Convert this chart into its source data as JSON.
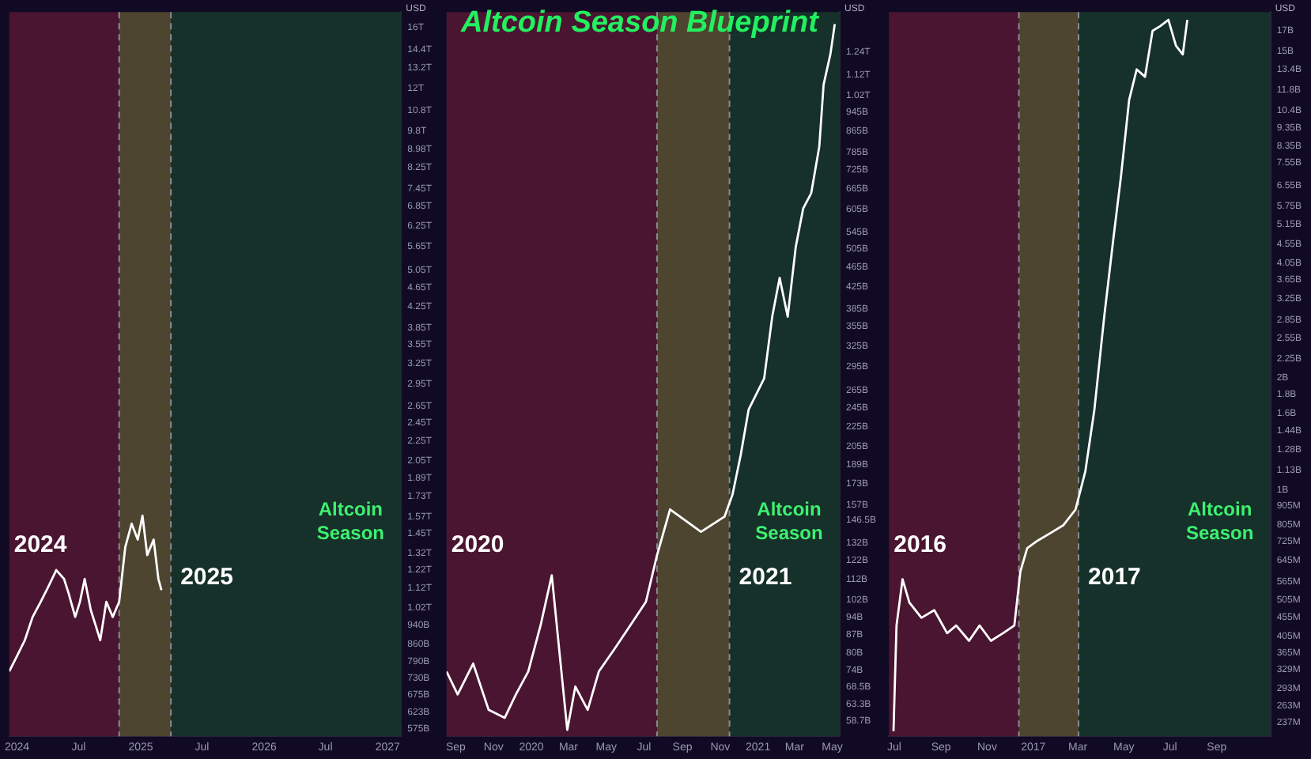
{
  "chart_data": [
    {
      "type": "line",
      "ylabel": "USD",
      "log": true,
      "legend": false,
      "grid": false,
      "xlim": [
        "2023-12-09",
        "2027-02-10"
      ],
      "xticks": [
        {
          "value": "2024-01-01",
          "label": "2024"
        },
        {
          "value": "2024-07-01",
          "label": "Jul"
        },
        {
          "value": "2025-01-01",
          "label": "2025"
        },
        {
          "value": "2025-07-01",
          "label": "Jul"
        },
        {
          "value": "2026-01-01",
          "label": "2026"
        },
        {
          "value": "2026-07-01",
          "label": "Jul"
        },
        {
          "value": "2027-01-01",
          "label": "2027"
        }
      ],
      "ylim": [
        555000000000.0,
        17200000000000.0
      ],
      "yticks": [
        {
          "value": 16000000000000.0,
          "label": "16T"
        },
        {
          "value": 14400000000000.0,
          "label": "14.4T"
        },
        {
          "value": 13200000000000.0,
          "label": "13.2T"
        },
        {
          "value": 12000000000000.0,
          "label": "12T"
        },
        {
          "value": 10800000000000.0,
          "label": "10.8T"
        },
        {
          "value": 9800000000000.0,
          "label": "9.8T"
        },
        {
          "value": 8980000000000.0,
          "label": "8.98T"
        },
        {
          "value": 8250000000000.0,
          "label": "8.25T"
        },
        {
          "value": 7450000000000.0,
          "label": "7.45T"
        },
        {
          "value": 6850000000000.0,
          "label": "6.85T"
        },
        {
          "value": 6250000000000.0,
          "label": "6.25T"
        },
        {
          "value": 5650000000000.0,
          "label": "5.65T"
        },
        {
          "value": 5050000000000.0,
          "label": "5.05T"
        },
        {
          "value": 4650000000000.0,
          "label": "4.65T"
        },
        {
          "value": 4250000000000.0,
          "label": "4.25T"
        },
        {
          "value": 3850000000000.0,
          "label": "3.85T"
        },
        {
          "value": 3550000000000.0,
          "label": "3.55T"
        },
        {
          "value": 3250000000000.0,
          "label": "3.25T"
        },
        {
          "value": 2950000000000.0,
          "label": "2.95T"
        },
        {
          "value": 2650000000000.0,
          "label": "2.65T"
        },
        {
          "value": 2450000000000.0,
          "label": "2.45T"
        },
        {
          "value": 2250000000000.0,
          "label": "2.25T"
        },
        {
          "value": 2050000000000.0,
          "label": "2.05T"
        },
        {
          "value": 1890000000000.0,
          "label": "1.89T"
        },
        {
          "value": 1730000000000.0,
          "label": "1.73T"
        },
        {
          "value": 1570000000000.0,
          "label": "1.57T"
        },
        {
          "value": 1450000000000.0,
          "label": "1.45T"
        },
        {
          "value": 1320000000000.0,
          "label": "1.32T"
        },
        {
          "value": 1220000000000.0,
          "label": "1.22T"
        },
        {
          "value": 1120000000000.0,
          "label": "1.12T"
        },
        {
          "value": 1020000000000.0,
          "label": "1.02T"
        },
        {
          "value": 940000000000.0,
          "label": "940B"
        },
        {
          "value": 860000000000.0,
          "label": "860B"
        },
        {
          "value": 790000000000.0,
          "label": "790B"
        },
        {
          "value": 730000000000.0,
          "label": "730B"
        },
        {
          "value": 675000000000.0,
          "label": "675B"
        },
        {
          "value": 623000000000.0,
          "label": "623B"
        },
        {
          "value": 575000000000.0,
          "label": "575B"
        }
      ],
      "bands": [
        {
          "axis": "x",
          "from": "2023-12-09",
          "to": "2024-10-29",
          "label": "2024",
          "color": "#4a1530"
        },
        {
          "axis": "x",
          "from": "2024-10-29",
          "to": "2025-03-31",
          "label": "2025",
          "color": "#4e4530"
        },
        {
          "axis": "x",
          "from": "2025-03-31",
          "to": "2027-02-10",
          "label": "Altcoin Season",
          "color": "#16302a"
        }
      ],
      "ref_lines": [
        {
          "axis": "x",
          "value": "2024-10-29",
          "color": "#8a8898",
          "line_style": "dashed"
        },
        {
          "axis": "x",
          "value": "2025-03-31",
          "color": "#8a8898",
          "line_style": "dashed"
        }
      ],
      "series": [
        {
          "color": "#ffffff",
          "x": [
            "2023-12-09",
            "2024-01-01",
            "2024-01-24",
            "2024-02-16",
            "2024-03-11",
            "2024-04-03",
            "2024-04-26",
            "2024-05-19",
            "2024-06-02",
            "2024-06-21",
            "2024-07-05",
            "2024-07-19",
            "2024-08-06",
            "2024-08-20",
            "2024-09-03",
            "2024-09-21",
            "2024-10-10",
            "2024-10-29",
            "2024-11-16",
            "2024-12-05",
            "2024-12-23",
            "2025-01-06",
            "2025-01-20",
            "2025-02-08",
            "2025-02-22",
            "2025-03-03"
          ],
          "values": [
            755000000000.0,
            812000000000.0,
            875000000000.0,
            977000000000.0,
            1050000000000.0,
            1130000000000.0,
            1220000000000.0,
            1170000000000.0,
            1090000000000.0,
            977000000000.0,
            1050000000000.0,
            1170000000000.0,
            1010000000000.0,
            941000000000.0,
            875000000000.0,
            1050000000000.0,
            977000000000.0,
            1050000000000.0,
            1360000000000.0,
            1520000000000.0,
            1410000000000.0,
            1580000000000.0,
            1310000000000.0,
            1410000000000.0,
            1170000000000.0,
            1110000000000.0
          ]
        }
      ]
    },
    {
      "type": "line",
      "title": "Altcoin Season Blueprint",
      "ylabel": "USD",
      "log": true,
      "legend": false,
      "grid": false,
      "xlim": [
        "2019-08-17",
        "2021-05-13"
      ],
      "xticks": [
        {
          "value": "2019-09-01",
          "label": "Sep"
        },
        {
          "value": "2019-11-01",
          "label": "Nov"
        },
        {
          "value": "2020-01-01",
          "label": "2020"
        },
        {
          "value": "2020-03-01",
          "label": "Mar"
        },
        {
          "value": "2020-05-01",
          "label": "May"
        },
        {
          "value": "2020-07-01",
          "label": "Jul"
        },
        {
          "value": "2020-09-01",
          "label": "Sep"
        },
        {
          "value": "2020-11-01",
          "label": "Nov"
        },
        {
          "value": "2021-01-01",
          "label": "2021"
        },
        {
          "value": "2021-03-01",
          "label": "Mar"
        },
        {
          "value": "2021-05-01",
          "label": "May"
        }
      ],
      "ylim": [
        54700000000.0,
        1490000000000.0
      ],
      "yticks": [
        {
          "value": 1240000000000.0,
          "label": "1.24T"
        },
        {
          "value": 1120000000000.0,
          "label": "1.12T"
        },
        {
          "value": 1020000000000.0,
          "label": "1.02T"
        },
        {
          "value": 945000000000.0,
          "label": "945B"
        },
        {
          "value": 865000000000.0,
          "label": "865B"
        },
        {
          "value": 785000000000.0,
          "label": "785B"
        },
        {
          "value": 725000000000.0,
          "label": "725B"
        },
        {
          "value": 665000000000.0,
          "label": "665B"
        },
        {
          "value": 605000000000.0,
          "label": "605B"
        },
        {
          "value": 545000000000.0,
          "label": "545B"
        },
        {
          "value": 505000000000.0,
          "label": "505B"
        },
        {
          "value": 465000000000.0,
          "label": "465B"
        },
        {
          "value": 425000000000.0,
          "label": "425B"
        },
        {
          "value": 385000000000.0,
          "label": "385B"
        },
        {
          "value": 355000000000.0,
          "label": "355B"
        },
        {
          "value": 325000000000.0,
          "label": "325B"
        },
        {
          "value": 295000000000.0,
          "label": "295B"
        },
        {
          "value": 265000000000.0,
          "label": "265B"
        },
        {
          "value": 245000000000.0,
          "label": "245B"
        },
        {
          "value": 225000000000.0,
          "label": "225B"
        },
        {
          "value": 205000000000.0,
          "label": "205B"
        },
        {
          "value": 189000000000.0,
          "label": "189B"
        },
        {
          "value": 173000000000.0,
          "label": "173B"
        },
        {
          "value": 157000000000.0,
          "label": "157B"
        },
        {
          "value": 146500000000.0,
          "label": "146.5B"
        },
        {
          "value": 132000000000.0,
          "label": "132B"
        },
        {
          "value": 122000000000.0,
          "label": "122B"
        },
        {
          "value": 112000000000.0,
          "label": "112B"
        },
        {
          "value": 102000000000.0,
          "label": "102B"
        },
        {
          "value": 94000000000.0,
          "label": "94B"
        },
        {
          "value": 87000000000.0,
          "label": "87B"
        },
        {
          "value": 80000000000.0,
          "label": "80B"
        },
        {
          "value": 74000000000.0,
          "label": "74B"
        },
        {
          "value": 68500000000.0,
          "label": "68.5B"
        },
        {
          "value": 63300000000.0,
          "label": "63.3B"
        },
        {
          "value": 58700000000.0,
          "label": "58.7B"
        }
      ],
      "bands": [
        {
          "axis": "x",
          "from": "2019-08-17",
          "to": "2020-07-22",
          "label": "2020",
          "color": "#4a1530"
        },
        {
          "axis": "x",
          "from": "2020-07-22",
          "to": "2020-11-16",
          "label": "2021",
          "color": "#4e4530"
        },
        {
          "axis": "x",
          "from": "2020-11-16",
          "to": "2021-05-13",
          "label": "Altcoin Season",
          "color": "#16302a"
        }
      ],
      "ref_lines": [
        {
          "axis": "x",
          "value": "2020-07-22",
          "color": "#8a8898",
          "line_style": "dashed"
        },
        {
          "axis": "x",
          "value": "2020-11-16",
          "color": "#8a8898",
          "line_style": "dashed"
        }
      ],
      "series": [
        {
          "color": "#ffffff",
          "x": [
            "2019-08-17",
            "2019-09-04",
            "2019-09-29",
            "2019-10-24",
            "2019-11-19",
            "2019-12-07",
            "2019-12-27",
            "2020-01-16",
            "2020-02-03",
            "2020-02-16",
            "2020-02-28",
            "2020-03-12",
            "2020-04-01",
            "2020-04-19",
            "2020-05-15",
            "2020-06-09",
            "2020-07-04",
            "2020-07-22",
            "2020-08-12",
            "2020-10-01",
            "2020-11-08",
            "2020-11-21",
            "2020-12-04",
            "2020-12-17",
            "2021-01-11",
            "2021-01-24",
            "2021-02-05",
            "2021-02-18",
            "2021-03-03",
            "2021-03-15",
            "2021-03-28",
            "2021-04-10",
            "2021-04-17",
            "2021-04-28",
            "2021-05-05"
          ],
          "values": [
            73500000000.0,
            66200000000.0,
            76200000000.0,
            61700000000.0,
            59500000000.0,
            66200000000.0,
            73500000000.0,
            90800000000.0,
            114000000000.0,
            78900000000.0,
            56300000000.0,
            68600000000.0,
            61700000000.0,
            73500000000.0,
            81700000000.0,
            90800000000.0,
            101000000000.0,
            125000000000.0,
            154000000000.0,
            139000000000.0,
            149000000000.0,
            165000000000.0,
            197000000000.0,
            243000000000.0,
            280000000000.0,
            371000000000.0,
            443000000000.0,
            371000000000.0,
            510000000000.0,
            608000000000.0,
            652000000000.0,
            806000000000.0,
            1070000000000.0,
            1230000000000.0,
            1410000000000.0
          ]
        }
      ]
    },
    {
      "type": "line",
      "ylabel": "USD",
      "log": true,
      "legend": false,
      "grid": false,
      "xlim": [
        "2016-06-24",
        "2017-11-11"
      ],
      "xticks": [
        {
          "value": "2016-07-01",
          "label": "Jul"
        },
        {
          "value": "2016-09-01",
          "label": "Sep"
        },
        {
          "value": "2016-11-01",
          "label": "Nov"
        },
        {
          "value": "2017-01-01",
          "label": "2017"
        },
        {
          "value": "2017-03-01",
          "label": "Mar"
        },
        {
          "value": "2017-05-01",
          "label": "May"
        },
        {
          "value": "2017-07-01",
          "label": "Jul"
        },
        {
          "value": "2017-09-01",
          "label": "Sep"
        }
      ],
      "ylim": [
        218000000.0,
        19100000000.0
      ],
      "yticks": [
        {
          "value": 17000000000.0,
          "label": "17B"
        },
        {
          "value": 15000000000.0,
          "label": "15B"
        },
        {
          "value": 13400000000.0,
          "label": "13.4B"
        },
        {
          "value": 11800000000.0,
          "label": "11.8B"
        },
        {
          "value": 10400000000.0,
          "label": "10.4B"
        },
        {
          "value": 9350000000.0,
          "label": "9.35B"
        },
        {
          "value": 8350000000.0,
          "label": "8.35B"
        },
        {
          "value": 7550000000.0,
          "label": "7.55B"
        },
        {
          "value": 6550000000.0,
          "label": "6.55B"
        },
        {
          "value": 5750000000.0,
          "label": "5.75B"
        },
        {
          "value": 5150000000.0,
          "label": "5.15B"
        },
        {
          "value": 4550000000.0,
          "label": "4.55B"
        },
        {
          "value": 4050000000.0,
          "label": "4.05B"
        },
        {
          "value": 3650000000.0,
          "label": "3.65B"
        },
        {
          "value": 3250000000.0,
          "label": "3.25B"
        },
        {
          "value": 2850000000.0,
          "label": "2.85B"
        },
        {
          "value": 2550000000.0,
          "label": "2.55B"
        },
        {
          "value": 2250000000.0,
          "label": "2.25B"
        },
        {
          "value": 2000000000.0,
          "label": "2B"
        },
        {
          "value": 1800000000.0,
          "label": "1.8B"
        },
        {
          "value": 1600000000.0,
          "label": "1.6B"
        },
        {
          "value": 1440000000.0,
          "label": "1.44B"
        },
        {
          "value": 1280000000.0,
          "label": "1.28B"
        },
        {
          "value": 1130000000.0,
          "label": "1.13B"
        },
        {
          "value": 1000000000.0,
          "label": "1B"
        },
        {
          "value": 905000000.0,
          "label": "905M"
        },
        {
          "value": 805000000.0,
          "label": "805M"
        },
        {
          "value": 725000000.0,
          "label": "725M"
        },
        {
          "value": 645000000.0,
          "label": "645M"
        },
        {
          "value": 565000000.0,
          "label": "565M"
        },
        {
          "value": 505000000.0,
          "label": "505M"
        },
        {
          "value": 455000000.0,
          "label": "455M"
        },
        {
          "value": 405000000.0,
          "label": "405M"
        },
        {
          "value": 365000000.0,
          "label": "365M"
        },
        {
          "value": 329000000.0,
          "label": "329M"
        },
        {
          "value": 293000000.0,
          "label": "293M"
        },
        {
          "value": 263000000.0,
          "label": "263M"
        },
        {
          "value": 237000000.0,
          "label": "237M"
        }
      ],
      "bands": [
        {
          "axis": "x",
          "from": "2016-06-24",
          "to": "2016-12-13",
          "label": "2016",
          "color": "#4a1530"
        },
        {
          "axis": "x",
          "from": "2016-12-13",
          "to": "2017-03-02",
          "label": "2017",
          "color": "#4e4530"
        },
        {
          "axis": "x",
          "from": "2017-03-02",
          "to": "2017-11-11",
          "label": "Altcoin Season",
          "color": "#16302a"
        }
      ],
      "ref_lines": [
        {
          "axis": "x",
          "value": "2016-12-13",
          "color": "#8a8898",
          "line_style": "dashed"
        },
        {
          "axis": "x",
          "value": "2017-03-02",
          "color": "#8a8898",
          "line_style": "dashed"
        }
      ],
      "series": [
        {
          "color": "#ffffff",
          "x": [
            "2016-06-30",
            "2016-07-04",
            "2016-07-12",
            "2016-07-21",
            "2016-08-06",
            "2016-08-23",
            "2016-09-09",
            "2016-09-21",
            "2016-10-08",
            "2016-10-22",
            "2016-11-06",
            "2016-11-22",
            "2016-12-07",
            "2016-12-15",
            "2016-12-24",
            "2017-01-07",
            "2017-01-24",
            "2017-02-10",
            "2017-02-26",
            "2017-03-11",
            "2017-03-23",
            "2017-04-05",
            "2017-04-17",
            "2017-04-27",
            "2017-05-08",
            "2017-05-18",
            "2017-05-29",
            "2017-06-08",
            "2017-06-18",
            "2017-06-29",
            "2017-07-09",
            "2017-07-18",
            "2017-07-24"
          ],
          "values": [
            225000000.0,
            432000000.0,
            575000000.0,
            498000000.0,
            453000000.0,
            475000000.0,
            412000000.0,
            432000000.0,
            393000000.0,
            432000000.0,
            393000000.0,
            412000000.0,
            432000000.0,
            603000000.0,
            696000000.0,
            730000000.0,
            765000000.0,
            803000000.0,
            884000000.0,
            1120000000.0,
            1640000000.0,
            2910000000.0,
            4690000000.0,
            6870000000.0,
            11100000000.0,
            13400000000.0,
            12800000000.0,
            17000000000.0,
            17500000000.0,
            18200000000.0,
            15500000000.0,
            14700000000.0,
            18200000000.0
          ]
        }
      ]
    }
  ]
}
